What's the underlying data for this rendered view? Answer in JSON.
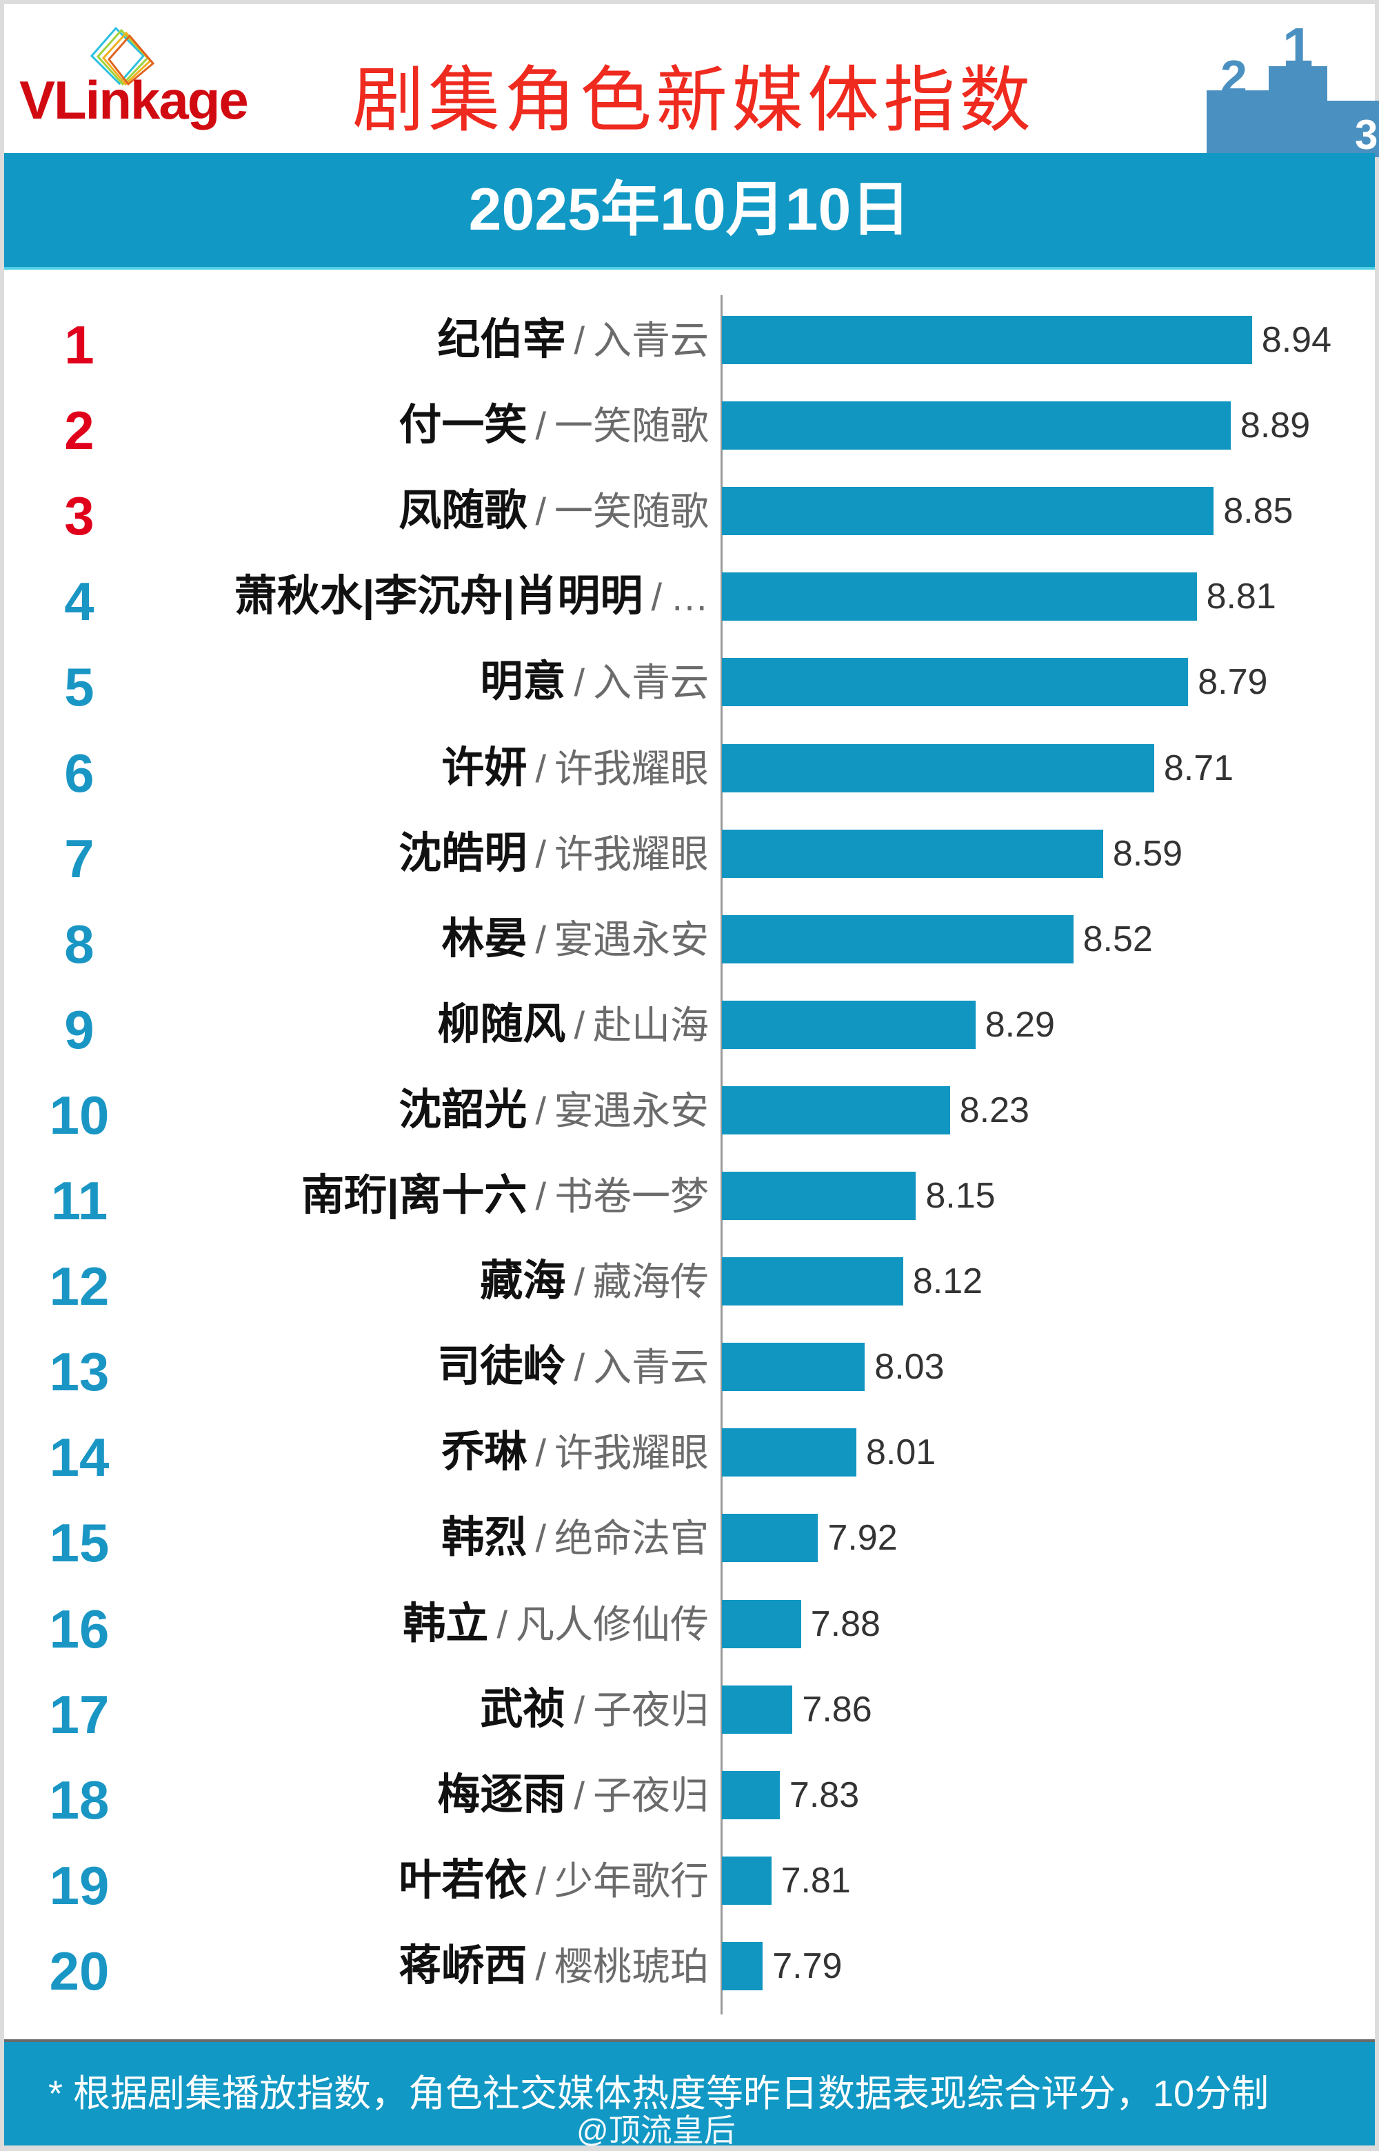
{
  "header": {
    "logo_text": "VLinkage",
    "title": "剧集角色新媒体指数",
    "podium_labels": [
      "2",
      "1",
      "3"
    ],
    "date": "2025年10月10日"
  },
  "colors": {
    "top3_rank": "#e0001b",
    "rank": "#1a96c4",
    "bar": "#1196c1",
    "band": "#1198c4",
    "title": "#ef2a1f"
  },
  "chart_data": {
    "type": "bar",
    "orientation": "horizontal",
    "title": "剧集角色新媒体指数",
    "xlabel": "",
    "ylabel": "",
    "grid": false,
    "ranks": [
      "1",
      "2",
      "3",
      "4",
      "5",
      "6",
      "7",
      "8",
      "9",
      "10",
      "11",
      "12",
      "13",
      "14",
      "15",
      "16",
      "17",
      "18",
      "19",
      "20"
    ],
    "categories": [
      "纪伯宰",
      "付一笑",
      "凤随歌",
      "萧秋水|李沉舟|肖明明",
      "明意",
      "许妍",
      "沈皓明",
      "林晏",
      "柳随风",
      "沈韶光",
      "南珩|离十六",
      "藏海",
      "司徒岭",
      "乔琳",
      "韩烈",
      "韩立",
      "武祯",
      "梅逐雨",
      "叶若依",
      "蒋峤西"
    ],
    "shows": [
      "入青云",
      "一笑随歌",
      "一笑随歌",
      "…",
      "入青云",
      "许我耀眼",
      "许我耀眼",
      "宴遇永安",
      "赴山海",
      "宴遇永安",
      "书卷一梦",
      "藏海传",
      "入青云",
      "许我耀眼",
      "绝命法官",
      "凡人修仙传",
      "子夜归",
      "子夜归",
      "少年歌行",
      "樱桃琥珀"
    ],
    "values": [
      8.94,
      8.89,
      8.85,
      8.81,
      8.79,
      8.71,
      8.59,
      8.52,
      8.29,
      8.23,
      8.15,
      8.12,
      8.03,
      8.01,
      7.92,
      7.88,
      7.86,
      7.83,
      7.81,
      7.79
    ],
    "value_labels": [
      "8.94",
      "8.89",
      "8.85",
      "8.81",
      "8.79",
      "8.71",
      "8.59",
      "8.52",
      "8.29",
      "8.23",
      "8.15",
      "8.12",
      "8.03",
      "8.01",
      "7.92",
      "7.88",
      "7.86",
      "7.83",
      "7.81",
      "7.79"
    ],
    "separator": "/"
  },
  "footer": {
    "note": "* 根据剧集播放指数，角色社交媒体热度等昨日数据表现综合评分，10分制",
    "watermark": "@顶流皇后"
  }
}
